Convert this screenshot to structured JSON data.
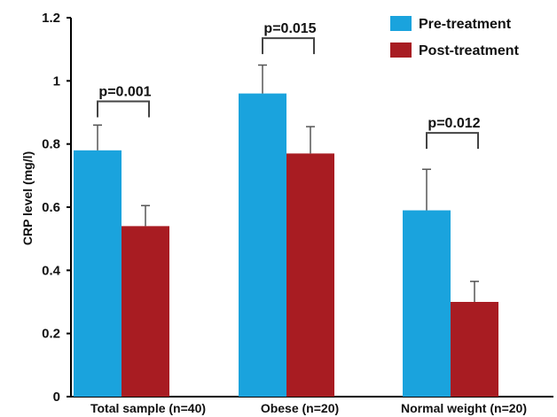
{
  "chart_data": {
    "type": "bar",
    "title": "",
    "xlabel": "",
    "ylabel": "CRP level (mg/l)",
    "ylim": [
      0,
      1.2
    ],
    "yticks": [
      "0",
      "0.2",
      "0.4",
      "0.6",
      "0.8",
      "1",
      "1.2"
    ],
    "categories": [
      "Total sample (n=40)",
      "Obese (n=20)",
      "Normal weight (n=20)"
    ],
    "series": [
      {
        "name": "Pre-treatment",
        "color": "#1aa3dd",
        "values": [
          0.78,
          0.96,
          0.59
        ],
        "error": [
          0.08,
          0.09,
          0.13
        ]
      },
      {
        "name": "Post-treatment",
        "color": "#a81c22",
        "values": [
          0.54,
          0.77,
          0.3
        ],
        "error": [
          0.065,
          0.085,
          0.065
        ]
      }
    ],
    "annotations": [
      {
        "category": "Total sample (n=40)",
        "text": "p=0.001",
        "bracket_y": 0.935
      },
      {
        "category": "Obese (n=20)",
        "text": "p=0.015",
        "bracket_y": 1.135
      },
      {
        "category": "Normal weight (n=20)",
        "text": "p=0.012",
        "bracket_y": 0.835
      }
    ],
    "legend_position": "top-right",
    "grid": false
  }
}
